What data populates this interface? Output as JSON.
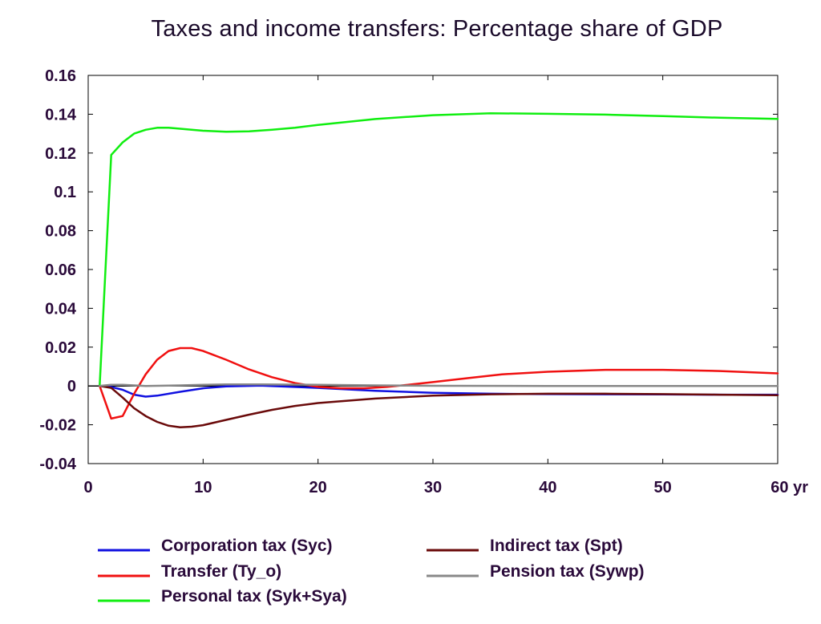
{
  "chart_data": {
    "type": "line",
    "title": "Taxes and income transfers: Percentage share of GDP",
    "xlabel": "",
    "ylabel": "",
    "x_unit_label": "yr",
    "xlim": [
      0,
      60
    ],
    "ylim": [
      -0.04,
      0.16
    ],
    "x_ticks": [
      0,
      10,
      20,
      30,
      40,
      50,
      60
    ],
    "x_tick_labels": [
      "0",
      "10",
      "20",
      "30",
      "40",
      "50",
      "60 yr"
    ],
    "y_ticks": [
      -0.04,
      -0.02,
      0,
      0.02,
      0.04,
      0.06,
      0.08,
      0.1,
      0.12,
      0.14,
      0.16
    ],
    "y_tick_labels": [
      "-0.04",
      "-0.02",
      "0",
      "0.02",
      "0.04",
      "0.06",
      "0.08",
      "0.1",
      "0.12",
      "0.14",
      "0.16"
    ],
    "grid": false,
    "zero_line": true,
    "legend_position": "bottom",
    "series": [
      {
        "name": "Corporation tax (Syc)",
        "color": "#1010e0",
        "x": [
          1,
          2,
          3,
          4,
          5,
          6,
          8,
          10,
          12,
          15,
          20,
          25,
          30,
          35,
          40,
          45,
          50,
          55,
          60
        ],
        "y": [
          0,
          -0.0005,
          -0.002,
          -0.0045,
          -0.0055,
          -0.005,
          -0.003,
          -0.0012,
          -0.0002,
          0.0002,
          -0.001,
          -0.0025,
          -0.0035,
          -0.004,
          -0.0042,
          -0.0043,
          -0.0044,
          -0.0045,
          -0.0045
        ]
      },
      {
        "name": "Transfer (Ty_o)",
        "color": "#f01010",
        "x": [
          1,
          2,
          3,
          4,
          5,
          6,
          7,
          8,
          9,
          10,
          12,
          14,
          16,
          18,
          20,
          22,
          24,
          26,
          28,
          30,
          33,
          36,
          40,
          45,
          50,
          55,
          60
        ],
        "y": [
          0,
          -0.0168,
          -0.0155,
          -0.004,
          0.006,
          0.0135,
          0.018,
          0.0195,
          0.0195,
          0.018,
          0.0135,
          0.0085,
          0.0045,
          0.0015,
          -0.0005,
          -0.0012,
          -0.0012,
          -0.0005,
          0.0007,
          0.002,
          0.004,
          0.006,
          0.0073,
          0.0083,
          0.0083,
          0.0077,
          0.0065
        ]
      },
      {
        "name": "Personal tax (Syk+Sya)",
        "color": "#10ee10",
        "x": [
          1,
          2,
          3,
          4,
          5,
          6,
          7,
          8,
          10,
          12,
          14,
          16,
          18,
          20,
          25,
          30,
          35,
          40,
          45,
          50,
          55,
          60
        ],
        "y": [
          0,
          0.119,
          0.1255,
          0.13,
          0.132,
          0.133,
          0.133,
          0.1325,
          0.1315,
          0.131,
          0.1312,
          0.132,
          0.133,
          0.1345,
          0.1375,
          0.1395,
          0.1405,
          0.1402,
          0.1398,
          0.139,
          0.1382,
          0.1376
        ]
      },
      {
        "name": "Indirect tax (Spt)",
        "color": "#6a0a0a",
        "x": [
          1,
          2,
          3,
          4,
          5,
          6,
          7,
          8,
          9,
          10,
          12,
          14,
          16,
          18,
          20,
          25,
          30,
          35,
          40,
          45,
          50,
          55,
          60
        ],
        "y": [
          0,
          -0.001,
          -0.006,
          -0.0115,
          -0.0155,
          -0.0185,
          -0.0205,
          -0.0213,
          -0.021,
          -0.0202,
          -0.0175,
          -0.0148,
          -0.0123,
          -0.0103,
          -0.0088,
          -0.0065,
          -0.005,
          -0.0043,
          -0.004,
          -0.004,
          -0.0042,
          -0.0045,
          -0.0048
        ]
      },
      {
        "name": "Pension tax (Sywp)",
        "color": "#888888",
        "x": [
          1,
          2,
          3,
          4,
          5,
          8,
          10,
          12,
          15,
          20,
          25,
          30,
          40,
          50,
          60
        ],
        "y": [
          0,
          0.0006,
          0.0006,
          0.0003,
          0,
          0.0003,
          0.0006,
          0.0008,
          0.0008,
          0.0006,
          0.0003,
          0.0001,
          0,
          0,
          0
        ]
      }
    ],
    "legend_order": [
      0,
      3,
      1,
      4,
      2
    ]
  }
}
